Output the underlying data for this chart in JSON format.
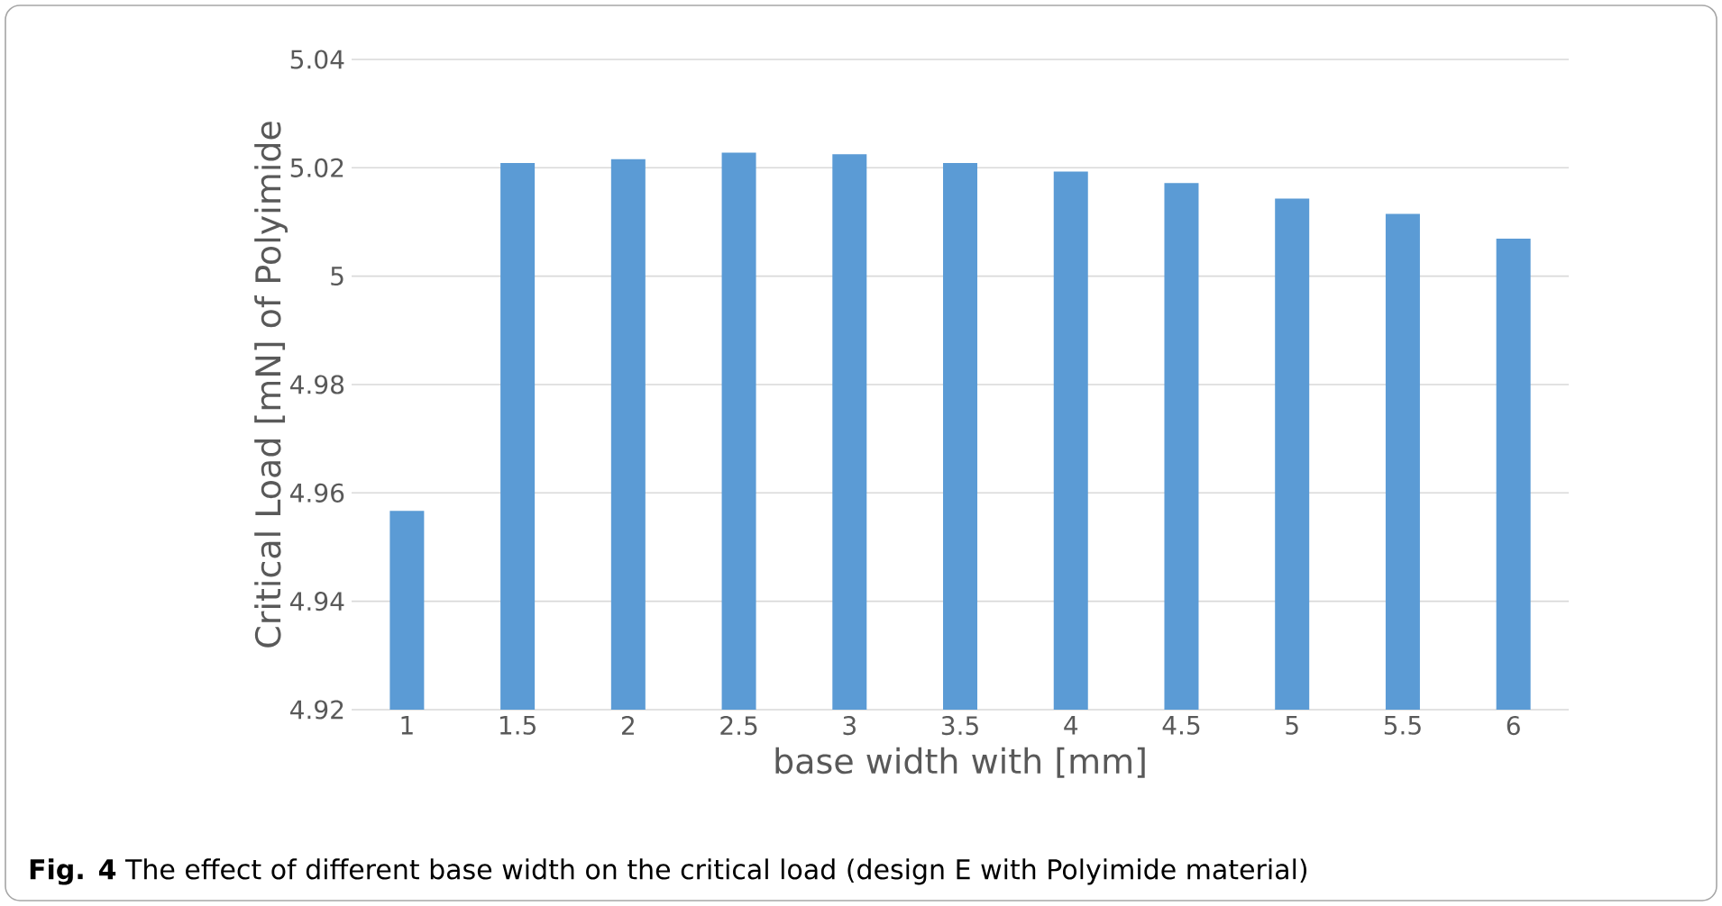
{
  "chart_data": {
    "type": "bar",
    "categories": [
      "1",
      "1.5",
      "2",
      "2.5",
      "3",
      "3.5",
      "4",
      "4.5",
      "5",
      "5.5",
      "6"
    ],
    "values": [
      4.9567,
      5.0209,
      5.0216,
      5.0228,
      5.0225,
      5.0209,
      5.0193,
      5.0172,
      5.0143,
      5.0115,
      5.0069
    ],
    "color": "#5b9bd5",
    "xlabel": "base width with [mm]",
    "ylabel": "Critical Load [mN] of Polyimide",
    "ylim": [
      4.92,
      5.04
    ],
    "yticks": [
      4.92,
      4.94,
      4.96,
      4.98,
      5,
      5.02,
      5.04
    ],
    "grid": "y",
    "annotations": [
      "**Fig. 4** The effect of different base width on the critical load (design E with Polyimide material)"
    ]
  }
}
